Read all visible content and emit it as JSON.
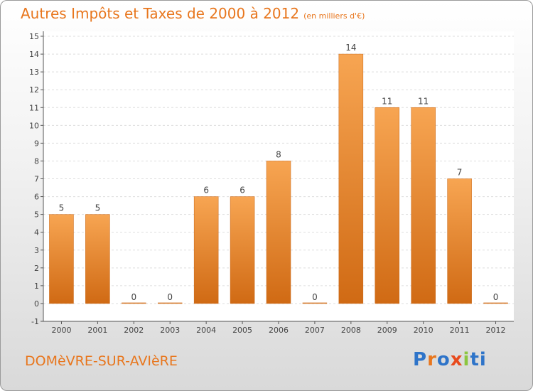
{
  "header": {
    "title": "Autres Impôts et Taxes de 2000 à 2012",
    "unit": "(en milliers d'€)"
  },
  "footer": {
    "place": "DOMèVRE-SUR-AVIèRE",
    "logo": [
      "P",
      "r",
      "o",
      "x",
      "i",
      "ti"
    ]
  },
  "chart_data": {
    "type": "bar",
    "title": "Autres Impôts et Taxes de 2000 à 2012",
    "categories": [
      "2000",
      "2001",
      "2002",
      "2003",
      "2004",
      "2005",
      "2006",
      "2007",
      "2008",
      "2009",
      "2010",
      "2011",
      "2012"
    ],
    "values": [
      5,
      5,
      0,
      0,
      6,
      6,
      8,
      0,
      14,
      11,
      11,
      7,
      0
    ],
    "ylim": [
      -1,
      15
    ],
    "yticks": [
      "-1",
      "0",
      "1",
      "2",
      "3",
      "4",
      "5",
      "6",
      "7",
      "8",
      "9",
      "10",
      "11",
      "12",
      "13",
      "14",
      "15"
    ],
    "grid": true,
    "bar_color": "#f08a2a"
  }
}
